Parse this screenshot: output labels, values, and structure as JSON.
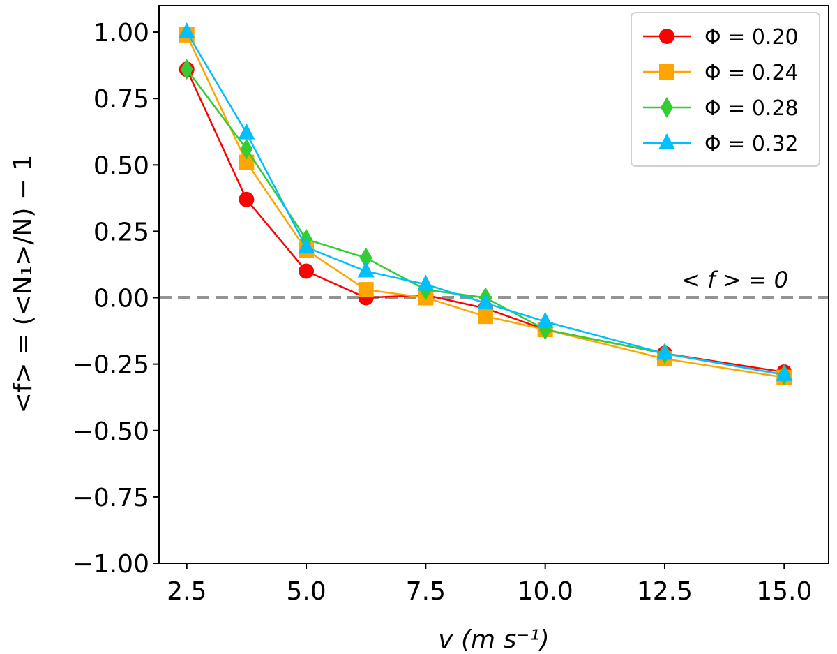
{
  "chart_data": {
    "type": "line",
    "title": "",
    "xlabel": "v (m s⁻¹)",
    "ylabel": "<f> = (<N₁>/N) − 1",
    "xlim": [
      1.92,
      15.93
    ],
    "ylim": [
      -1.0,
      1.1
    ],
    "xticks": [
      2.5,
      5.0,
      7.5,
      10.0,
      12.5,
      15.0
    ],
    "xtick_labels": [
      "2.5",
      "5.0",
      "7.5",
      "10.0",
      "12.5",
      "15.0"
    ],
    "yticks": [
      1.0,
      0.75,
      0.5,
      0.25,
      0.0,
      -0.25,
      -0.5,
      -0.75,
      -1.0
    ],
    "ytick_labels": [
      "1.00",
      "0.75",
      "0.50",
      "0.25",
      "0.00",
      "−0.25",
      "−0.50",
      "−0.75",
      "−1.00"
    ],
    "grid": false,
    "legend_position": "top-right",
    "x": [
      2.5,
      3.75,
      5.0,
      6.25,
      7.5,
      8.75,
      10.0,
      12.5,
      15.0
    ],
    "series": [
      {
        "name": "Φ = 0.20",
        "color": "#ff0000",
        "marker": "circle",
        "values": [
          0.86,
          0.37,
          0.1,
          0.0,
          0.01,
          -0.04,
          -0.12,
          -0.21,
          -0.28
        ]
      },
      {
        "name": "Φ = 0.24",
        "color": "#ffa500",
        "marker": "square",
        "values": [
          0.99,
          0.51,
          0.18,
          0.03,
          0.0,
          -0.07,
          -0.12,
          -0.23,
          -0.3
        ]
      },
      {
        "name": "Φ = 0.28",
        "color": "#32cd32",
        "marker": "diamond",
        "values": [
          0.86,
          0.56,
          0.22,
          0.15,
          0.03,
          0.0,
          -0.12,
          -0.21,
          -0.29
        ]
      },
      {
        "name": "Φ = 0.32",
        "color": "#00bfff",
        "marker": "triangle",
        "values": [
          1.0,
          0.62,
          0.19,
          0.1,
          0.05,
          -0.02,
          -0.09,
          -0.21,
          -0.29
        ]
      }
    ],
    "reference_line": {
      "y": 0,
      "color": "#939393",
      "label": "< f > = 0"
    }
  }
}
